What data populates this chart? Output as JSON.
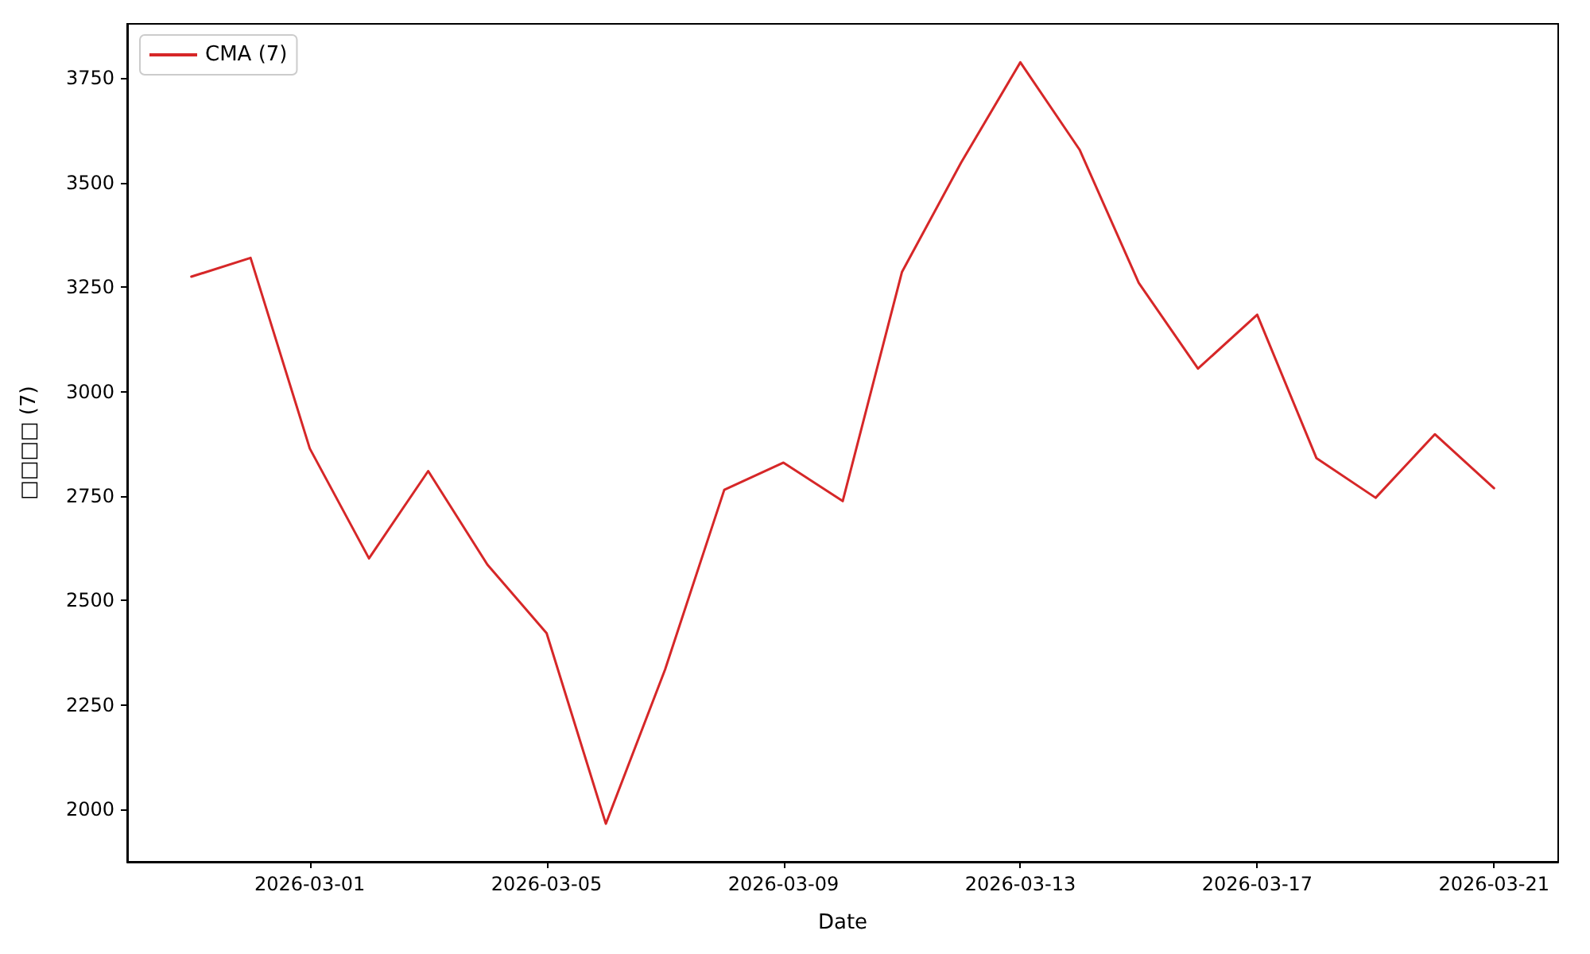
{
  "chart_data": {
    "type": "line",
    "xlabel": "Date",
    "ylabel": "□□□□ (7)",
    "x": [
      "2026-02-27",
      "2026-02-28",
      "2026-03-01",
      "2026-03-02",
      "2026-03-03",
      "2026-03-04",
      "2026-03-05",
      "2026-03-06",
      "2026-03-07",
      "2026-03-08",
      "2026-03-09",
      "2026-03-10",
      "2026-03-11",
      "2026-03-12",
      "2026-03-13",
      "2026-03-14",
      "2026-03-15",
      "2026-03-16",
      "2026-03-17",
      "2026-03-18",
      "2026-03-19",
      "2026-03-20",
      "2026-03-21"
    ],
    "series": [
      {
        "name": "CMA (7)",
        "color": "#d62728",
        "values": [
          3275,
          3320,
          2864,
          2601,
          2810,
          2586,
          2422,
          1966,
          2335,
          2765,
          2830,
          2738,
          3286,
          3548,
          3788,
          3579,
          3260,
          3055,
          3184,
          2841,
          2746,
          2898,
          2769
        ]
      }
    ],
    "xlim": [
      "2026-02-25T22:00",
      "2026-03-22T02:00"
    ],
    "xticks": [
      "2026-03-01",
      "2026-03-05",
      "2026-03-09",
      "2026-03-13",
      "2026-03-17",
      "2026-03-21"
    ],
    "ylim": [
      1875,
      3880
    ],
    "yticks": [
      2000,
      2250,
      2500,
      2750,
      3000,
      3250,
      3500,
      3750
    ],
    "grid": false,
    "legend": "top left",
    "marker": "none",
    "line_style": "solid"
  }
}
